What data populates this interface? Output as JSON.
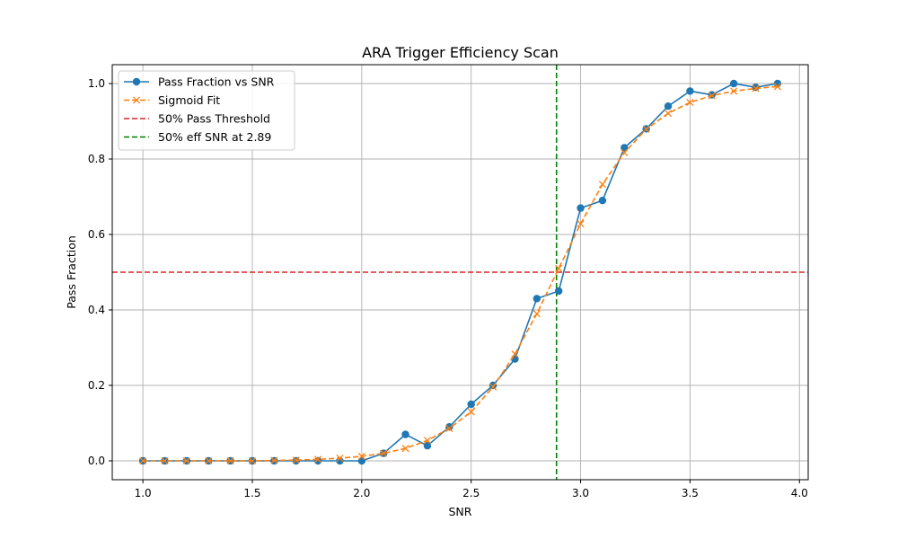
{
  "chart_data": {
    "type": "line",
    "title": "ARA Trigger Efficiency Scan",
    "xlabel": "SNR",
    "ylabel": "Pass Fraction",
    "xlim": [
      0.86,
      4.04
    ],
    "ylim": [
      -0.05,
      1.05
    ],
    "grid": true,
    "legend_position": "top-left",
    "x_ticks": [
      1.0,
      1.5,
      2.0,
      2.5,
      3.0,
      3.5,
      4.0
    ],
    "x_tick_labels": [
      "1.0",
      "1.5",
      "2.0",
      "2.5",
      "3.0",
      "3.5",
      "4.0"
    ],
    "y_ticks": [
      0.0,
      0.2,
      0.4,
      0.6,
      0.8,
      1.0
    ],
    "y_tick_labels": [
      "0.0",
      "0.2",
      "0.4",
      "0.6",
      "0.8",
      "1.0"
    ],
    "x": [
      1.0,
      1.1,
      1.2,
      1.3,
      1.4,
      1.5,
      1.6,
      1.7,
      1.8,
      1.9,
      2.0,
      2.1,
      2.2,
      2.3,
      2.4,
      2.5,
      2.6,
      2.7,
      2.8,
      2.9,
      3.0,
      3.1,
      3.2,
      3.3,
      3.4,
      3.5,
      3.6,
      3.7,
      3.8,
      3.9
    ],
    "series": [
      {
        "name": "Pass Fraction vs SNR",
        "color": "#1f77b4",
        "linestyle": "solid",
        "marker": "circle",
        "values": [
          0.0,
          0.0,
          0.0,
          0.0,
          0.0,
          0.0,
          0.0,
          0.0,
          0.0,
          0.0,
          0.0,
          0.02,
          0.07,
          0.04,
          0.09,
          0.15,
          0.2,
          0.27,
          0.43,
          0.45,
          0.67,
          0.69,
          0.83,
          0.88,
          0.94,
          0.98,
          0.97,
          1.0,
          0.99,
          1.0
        ]
      },
      {
        "name": "Sigmoid Fit",
        "color": "#ff7f0e",
        "linestyle": "dashed",
        "marker": "x",
        "values": [
          0.0,
          0.0,
          0.0,
          0.0,
          0.0,
          0.0,
          0.001,
          0.002,
          0.004,
          0.007,
          0.012,
          0.02,
          0.033,
          0.054,
          0.086,
          0.13,
          0.196,
          0.283,
          0.39,
          0.51,
          0.628,
          0.733,
          0.817,
          0.879,
          0.921,
          0.95,
          0.968,
          0.98,
          0.987,
          0.992
        ]
      }
    ],
    "reference_lines": [
      {
        "name": "50% Pass Threshold",
        "orientation": "horizontal",
        "value": 0.5,
        "color": "#d62728",
        "linestyle": "dashed"
      },
      {
        "name": "50% eff SNR at 2.89",
        "orientation": "vertical",
        "value": 2.89,
        "color": "#008000",
        "linestyle": "dashed"
      }
    ]
  }
}
